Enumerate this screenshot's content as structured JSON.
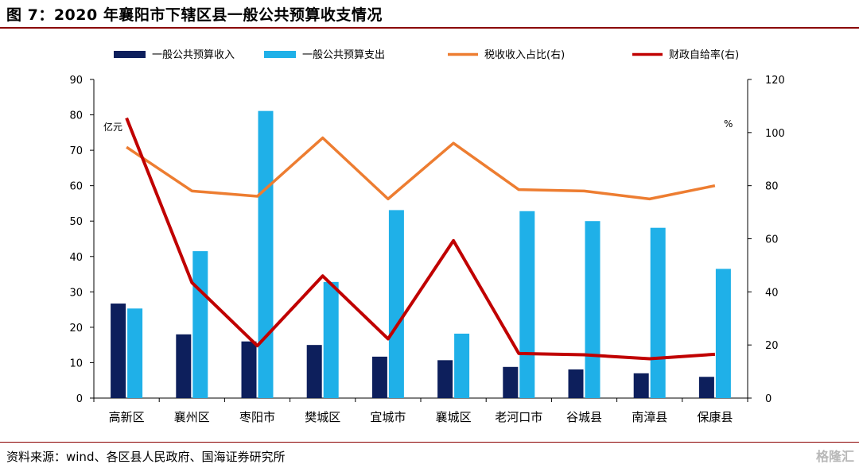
{
  "title": "图 7：2020 年襄阳市下辖区县一般公共预算收支情况",
  "source": "资料来源：wind、各区县人民政府、国海证券研究所",
  "watermark": "格隆汇",
  "chart_data": {
    "type": "bar",
    "categories": [
      "高新区",
      "襄州区",
      "枣阳市",
      "樊城区",
      "宜城市",
      "襄城区",
      "老河口市",
      "谷城县",
      "南漳县",
      "保康县"
    ],
    "series": [
      {
        "name": "一般公共预算收入",
        "type": "bar",
        "axis": "left",
        "color": "#0d1f5c",
        "values": [
          26.7,
          18.0,
          16.0,
          15.0,
          11.7,
          10.7,
          8.8,
          8.1,
          7.0,
          6.0
        ]
      },
      {
        "name": "一般公共预算支出",
        "type": "bar",
        "axis": "left",
        "color": "#1fb0e8",
        "values": [
          25.3,
          41.5,
          81.1,
          32.8,
          53.1,
          18.2,
          52.8,
          50.0,
          48.1,
          36.5
        ]
      },
      {
        "name": "税收收入占比(右)",
        "type": "line",
        "axis": "right",
        "color": "#ed7d31",
        "values": [
          94.5,
          78.0,
          76.0,
          98.0,
          75.0,
          96.0,
          78.5,
          78.0,
          75.0,
          80.0
        ]
      },
      {
        "name": "财政自给率(右)",
        "type": "line",
        "axis": "right",
        "color": "#c00000",
        "values": [
          105.5,
          43.5,
          19.7,
          46.0,
          22.3,
          59.3,
          16.8,
          16.3,
          14.8,
          16.5
        ]
      }
    ],
    "left_axis": {
      "unit": "亿元",
      "ylim": [
        0,
        90
      ],
      "ticks": [
        0,
        10,
        20,
        30,
        40,
        50,
        60,
        70,
        80,
        90
      ]
    },
    "right_axis": {
      "unit": "%",
      "ylim": [
        0,
        120
      ],
      "ticks": [
        0,
        20,
        40,
        60,
        80,
        100,
        120
      ]
    },
    "legend_position": "top",
    "grid": false
  }
}
